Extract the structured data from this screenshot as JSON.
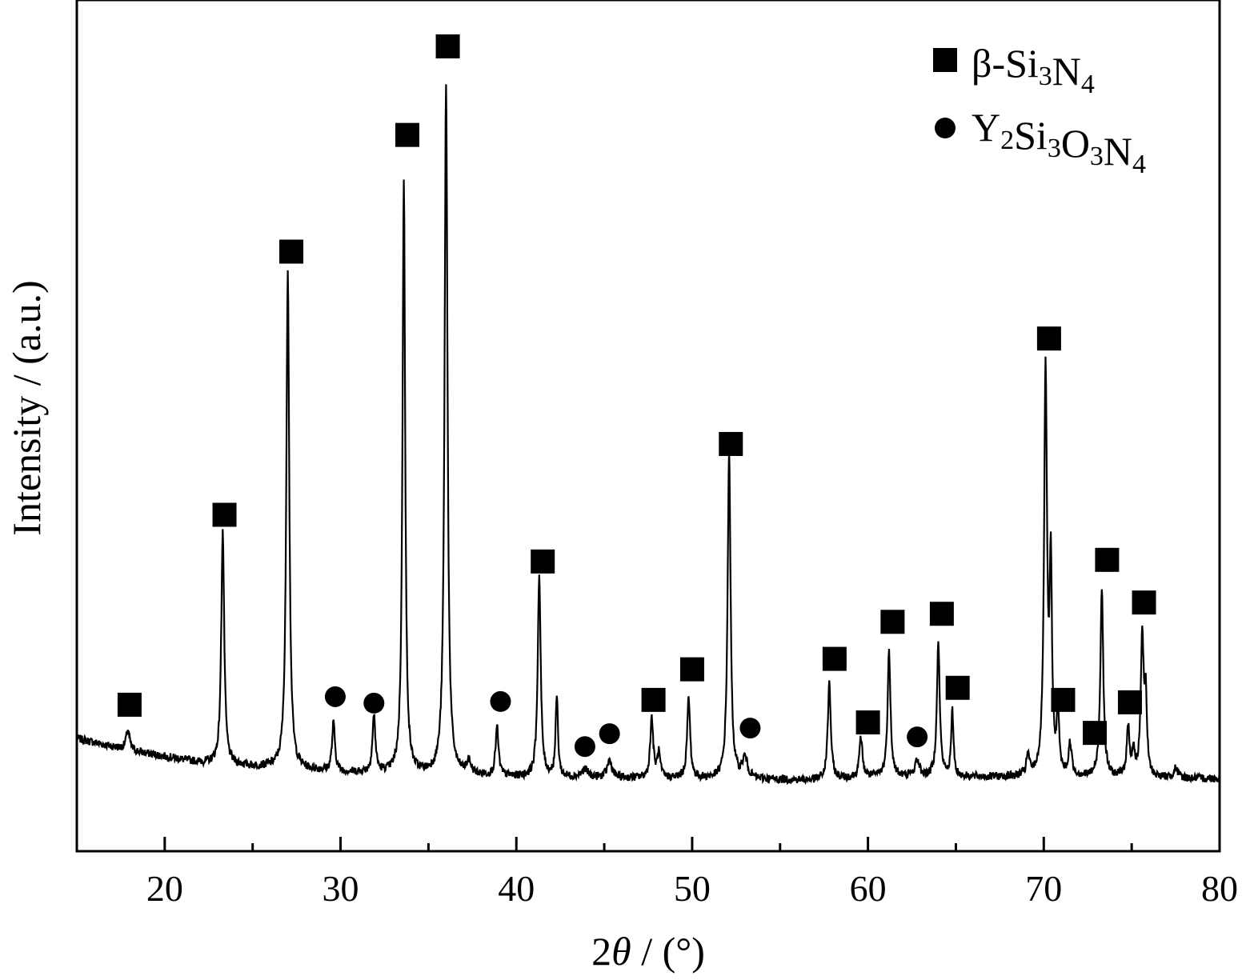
{
  "chart_data": {
    "type": "line",
    "xlabel_prefix": "2",
    "xlabel_symbol": "θ",
    "xlabel_suffix": " / (°)",
    "ylabel": "Intensity / (a.u.)",
    "xlim": [
      15,
      80
    ],
    "ylim": [
      0,
      1000
    ],
    "grid": false,
    "x_ticks": [
      20,
      30,
      40,
      50,
      60,
      70,
      80
    ],
    "x_minor_ticks": [
      25,
      35,
      45,
      55,
      65,
      75
    ],
    "y_ticks": [],
    "legend": {
      "placement": "top-right",
      "entries": [
        {
          "marker": "square",
          "base": "β-Si",
          "s1": "3",
          "mid": "N",
          "s2": "4"
        },
        {
          "marker": "circle",
          "parts": [
            {
              "t": "Y",
              "sub": false
            },
            {
              "t": "2",
              "sub": true
            },
            {
              "t": "Si",
              "sub": false
            },
            {
              "t": "3",
              "sub": true
            },
            {
              "t": "O",
              "sub": false
            },
            {
              "t": "3",
              "sub": true
            },
            {
              "t": "N",
              "sub": false
            },
            {
              "t": "4",
              "sub": true
            }
          ]
        }
      ]
    },
    "series": [
      {
        "baseline": [
          [
            15,
            140
          ],
          [
            18,
            125
          ],
          [
            22,
            110
          ],
          [
            25,
            105
          ],
          [
            30,
            98
          ],
          [
            40,
            92
          ],
          [
            50,
            90
          ],
          [
            57,
            88
          ],
          [
            60,
            92
          ],
          [
            70,
            92
          ],
          [
            80,
            90
          ]
        ],
        "peaks": [
          {
            "x": 17.9,
            "h": 25,
            "w": 0.12
          },
          {
            "x": 23.3,
            "h": 290,
            "w": 0.1
          },
          {
            "x": 27.0,
            "h": 620,
            "w": 0.1
          },
          {
            "x": 29.6,
            "h": 60,
            "w": 0.1
          },
          {
            "x": 31.9,
            "h": 70,
            "w": 0.1
          },
          {
            "x": 33.6,
            "h": 740,
            "w": 0.09
          },
          {
            "x": 36.0,
            "h": 860,
            "w": 0.1
          },
          {
            "x": 37.3,
            "h": 15,
            "w": 0.15
          },
          {
            "x": 38.9,
            "h": 60,
            "w": 0.1
          },
          {
            "x": 41.3,
            "h": 250,
            "w": 0.1
          },
          {
            "x": 42.3,
            "h": 100,
            "w": 0.08
          },
          {
            "x": 43.9,
            "h": 10,
            "w": 0.2
          },
          {
            "x": 45.3,
            "h": 22,
            "w": 0.15
          },
          {
            "x": 47.7,
            "h": 75,
            "w": 0.1
          },
          {
            "x": 48.1,
            "h": 30,
            "w": 0.1
          },
          {
            "x": 49.8,
            "h": 100,
            "w": 0.1
          },
          {
            "x": 52.1,
            "h": 405,
            "w": 0.1
          },
          {
            "x": 53.0,
            "h": 25,
            "w": 0.18
          },
          {
            "x": 57.8,
            "h": 120,
            "w": 0.1
          },
          {
            "x": 59.6,
            "h": 50,
            "w": 0.1
          },
          {
            "x": 61.2,
            "h": 155,
            "w": 0.1
          },
          {
            "x": 62.8,
            "h": 20,
            "w": 0.15
          },
          {
            "x": 64.0,
            "h": 165,
            "w": 0.1
          },
          {
            "x": 64.8,
            "h": 80,
            "w": 0.08
          },
          {
            "x": 69.1,
            "h": 25,
            "w": 0.1
          },
          {
            "x": 70.1,
            "h": 500,
            "w": 0.1
          },
          {
            "x": 70.4,
            "h": 250,
            "w": 0.08
          },
          {
            "x": 70.8,
            "h": 80,
            "w": 0.08
          },
          {
            "x": 71.5,
            "h": 40,
            "w": 0.1
          },
          {
            "x": 73.3,
            "h": 235,
            "w": 0.1
          },
          {
            "x": 74.8,
            "h": 60,
            "w": 0.1
          },
          {
            "x": 75.1,
            "h": 30,
            "w": 0.08
          },
          {
            "x": 75.6,
            "h": 175,
            "w": 0.1
          },
          {
            "x": 75.8,
            "h": 90,
            "w": 0.08
          },
          {
            "x": 77.5,
            "h": 12,
            "w": 0.15
          }
        ]
      }
    ],
    "phase_markers": [
      {
        "marker": "square",
        "x": 18.0,
        "y": 182
      },
      {
        "marker": "square",
        "x": 23.4,
        "y": 418
      },
      {
        "marker": "square",
        "x": 27.2,
        "y": 745
      },
      {
        "marker": "square",
        "x": 33.8,
        "y": 890
      },
      {
        "marker": "square",
        "x": 36.1,
        "y": 1000
      },
      {
        "marker": "square",
        "x": 41.5,
        "y": 360
      },
      {
        "marker": "square",
        "x": 47.8,
        "y": 188
      },
      {
        "marker": "square",
        "x": 50.0,
        "y": 226
      },
      {
        "marker": "square",
        "x": 52.2,
        "y": 506
      },
      {
        "marker": "square",
        "x": 58.1,
        "y": 239
      },
      {
        "marker": "square",
        "x": 60.0,
        "y": 160
      },
      {
        "marker": "square",
        "x": 61.4,
        "y": 285
      },
      {
        "marker": "square",
        "x": 64.2,
        "y": 295
      },
      {
        "marker": "square",
        "x": 65.1,
        "y": 203
      },
      {
        "marker": "square",
        "x": 70.3,
        "y": 637
      },
      {
        "marker": "square",
        "x": 71.1,
        "y": 188
      },
      {
        "marker": "square",
        "x": 72.9,
        "y": 147
      },
      {
        "marker": "square",
        "x": 73.6,
        "y": 362
      },
      {
        "marker": "square",
        "x": 74.9,
        "y": 185
      },
      {
        "marker": "square",
        "x": 75.7,
        "y": 309
      },
      {
        "marker": "circle",
        "x": 29.7,
        "y": 192
      },
      {
        "marker": "circle",
        "x": 31.9,
        "y": 184
      },
      {
        "marker": "circle",
        "x": 39.1,
        "y": 186
      },
      {
        "marker": "circle",
        "x": 43.9,
        "y": 130
      },
      {
        "marker": "circle",
        "x": 45.3,
        "y": 146
      },
      {
        "marker": "circle",
        "x": 53.3,
        "y": 153
      },
      {
        "marker": "circle",
        "x": 62.8,
        "y": 142
      }
    ]
  }
}
